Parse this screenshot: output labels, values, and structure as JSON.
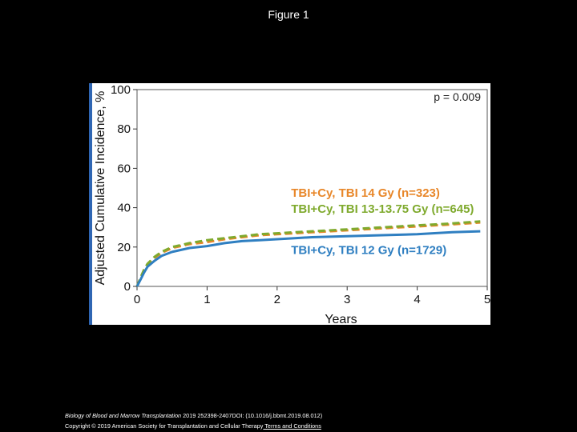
{
  "slide": {
    "title": "Figure 1"
  },
  "footer": {
    "journal": "Biology of Blood and Marrow Transplantation",
    "citation": " 2019 252398-2407DOI: (10.1016/j.bbmt.2019.08.012)",
    "copyright": "Copyright © 2019 American Society for Transplantation and Cellular Therapy",
    "link_text": " Terms and Conditions"
  },
  "chart_data": {
    "type": "line",
    "title": "",
    "xlabel": "Years",
    "ylabel": "Adjusted Cumulative Incidence, %",
    "xlim": [
      0,
      5
    ],
    "ylim": [
      0,
      100
    ],
    "xticks": [
      0,
      1,
      2,
      3,
      4,
      5
    ],
    "yticks": [
      0,
      20,
      40,
      60,
      80,
      100
    ],
    "annotation": "p = 0.009",
    "x": [
      0,
      0.05,
      0.1,
      0.15,
      0.25,
      0.35,
      0.5,
      0.75,
      1.0,
      1.25,
      1.5,
      1.75,
      2.0,
      2.25,
      2.5,
      3.0,
      3.5,
      4.0,
      4.5,
      4.9
    ],
    "series": [
      {
        "name": "TBI+Cy, TBI 14 Gy (n=323)",
        "color": "#e8872a",
        "style": "dashed",
        "values": [
          0,
          4,
          8,
          11,
          14.5,
          17,
          19.5,
          21.5,
          22.5,
          24,
          25,
          26,
          26.5,
          27,
          27.5,
          28.5,
          29.5,
          30.5,
          31.5,
          32.5
        ]
      },
      {
        "name": "TBI+Cy, TBI 13-13.75 Gy (n=645)",
        "color": "#7faa2e",
        "style": "dashed",
        "values": [
          0,
          4.5,
          8.5,
          11.5,
          15,
          17.5,
          20,
          22,
          23.5,
          24.5,
          25.5,
          26.5,
          27,
          27.5,
          28,
          29,
          30,
          31,
          32,
          33
        ]
      },
      {
        "name": "TBI+Cy, TBI 12 Gy (n=1729)",
        "color": "#2f7fc1",
        "style": "solid",
        "values": [
          0,
          3.5,
          7,
          10,
          13,
          15.5,
          17.5,
          19.5,
          20.5,
          22,
          23,
          23.5,
          24,
          24.5,
          25,
          25.5,
          26,
          26.5,
          27.5,
          28
        ]
      }
    ]
  }
}
